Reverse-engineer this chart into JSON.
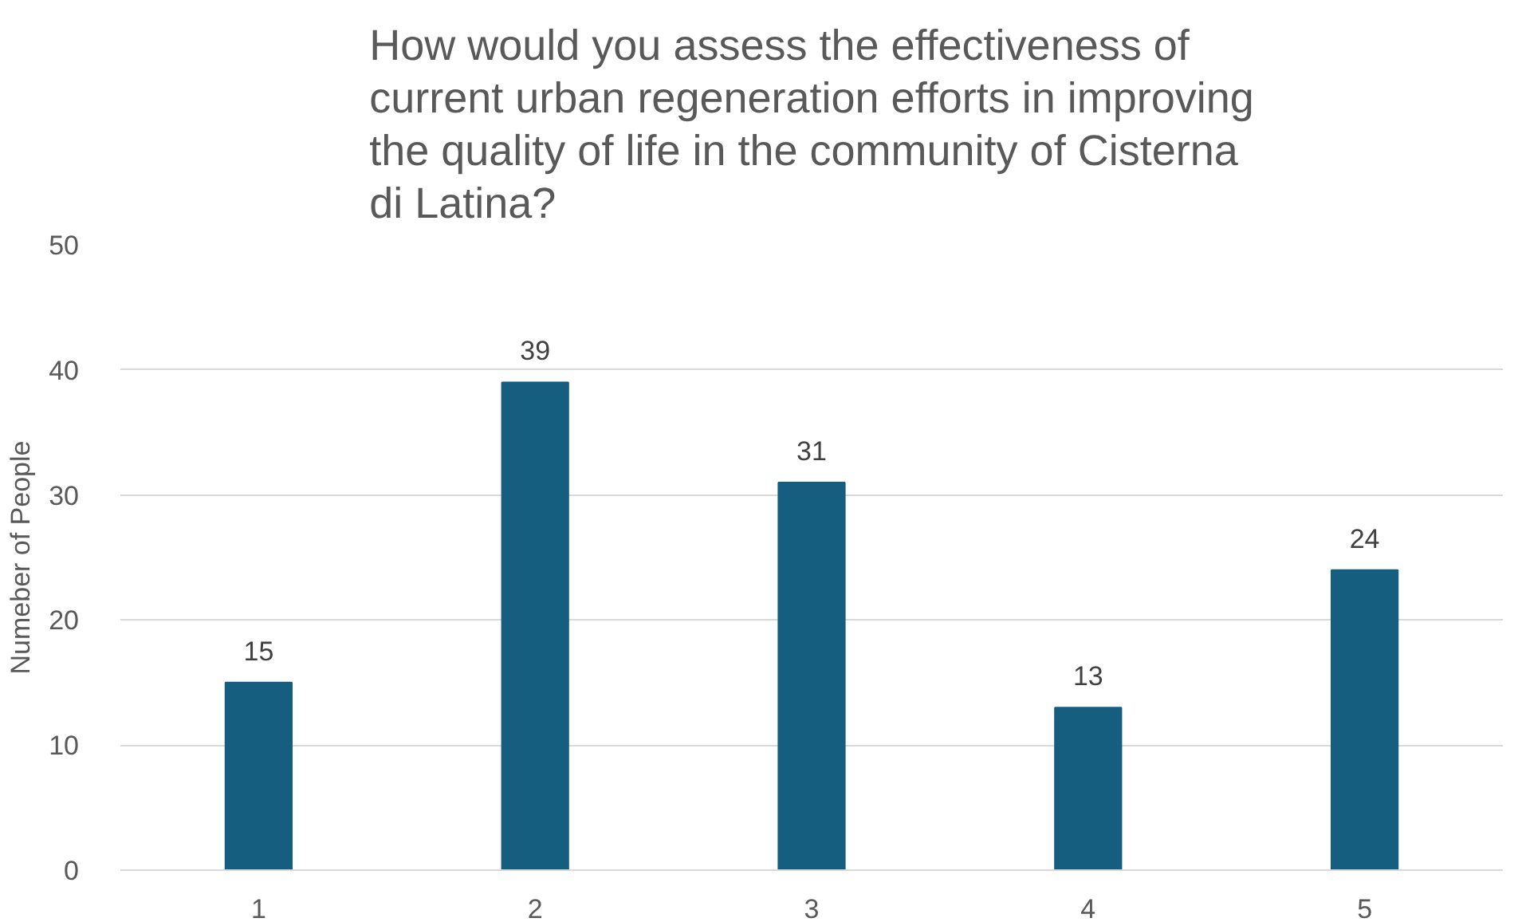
{
  "chart_data": {
    "type": "bar",
    "title": "How would you assess the effectiveness of current urban regeneration efforts in improving the quality of life in the community of Cisterna di Latina?",
    "ylabel": "Numeber of People",
    "categories": [
      "1",
      "2",
      "3",
      "4",
      "5"
    ],
    "values": [
      15,
      39,
      31,
      13,
      24
    ],
    "color": "#155e80",
    "ylim": [
      0,
      50
    ],
    "yticks": [
      0,
      10,
      20,
      30,
      40,
      50
    ],
    "grid": "y",
    "data_labels": true
  }
}
